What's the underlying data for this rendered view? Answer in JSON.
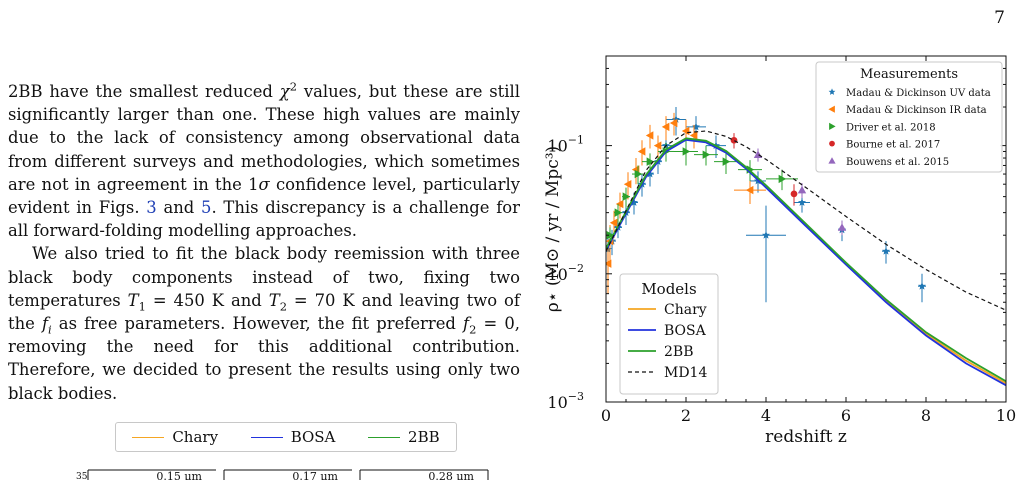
{
  "page_number": "7",
  "paragraphs": [
    {
      "segments": [
        {
          "t": "2BB have the smallest reduced "
        },
        {
          "t": "χ",
          "i": true
        },
        {
          "t": "2",
          "sup": true
        },
        {
          "t": " values, but these are still significantly larger than one. These high values are mainly due to the lack of consistency among observational data from different surveys and methodologies, which sometimes are not in agreement in the 1"
        },
        {
          "t": "σ",
          "i": true
        },
        {
          "t": " confidence level, particularly evident in Figs. "
        },
        {
          "t": "3",
          "link": true
        },
        {
          "t": " and "
        },
        {
          "t": "5",
          "link": true
        },
        {
          "t": ". This discrepancy is a challenge for all forward-folding modelling approaches."
        }
      ]
    },
    {
      "indent": true,
      "segments": [
        {
          "t": "We also tried to fit the black body reemission with three black body components instead of two, fixing two temperatures "
        },
        {
          "t": "T",
          "i": true
        },
        {
          "t": "1",
          "sub": true
        },
        {
          "t": " = 450 K and "
        },
        {
          "t": "T",
          "i": true
        },
        {
          "t": "2",
          "sub": true
        },
        {
          "t": " = 70 K and leaving two of the "
        },
        {
          "t": "f",
          "i": true
        },
        {
          "t": "i",
          "sub": true,
          "i": true
        },
        {
          "t": " as free parameters. However, the fit preferred "
        },
        {
          "t": "f",
          "i": true
        },
        {
          "t": "2",
          "sub": true
        },
        {
          "t": " = 0, removing the need for this additional contribution. Therefore, we decided to present the results using only two black bodies."
        }
      ]
    }
  ],
  "sub_figure": {
    "legend": [
      {
        "label": "Chary",
        "color": "#f5a623"
      },
      {
        "label": "BOSA",
        "color": "#2233dd"
      },
      {
        "label": "2BB",
        "color": "#2ca02c"
      }
    ],
    "panel_labels": [
      "0.15 µm",
      "0.17 µm",
      "0.28 µm"
    ],
    "y_tick": "35"
  },
  "chart_data": {
    "type": "scatter",
    "xlabel": "redshift z",
    "ylabel": "ρ⋆ (M⊙ / yr / Mpc³)",
    "xlim": [
      0,
      10
    ],
    "ylim": [
      0.001,
      0.5
    ],
    "y_scale": "log",
    "x_ticks": [
      0,
      2,
      4,
      6,
      8,
      10
    ],
    "y_ticks": [
      {
        "value": 0.001,
        "label": "10",
        "exp": "−3"
      },
      {
        "value": 0.01,
        "label": "10",
        "exp": "−2"
      },
      {
        "value": 0.1,
        "label": "10",
        "exp": "−1"
      }
    ],
    "measurements_legend": {
      "title": "Measurements",
      "placement": "top-right"
    },
    "models_legend": {
      "title": "Models",
      "placement": "bottom-left"
    },
    "measurements": [
      {
        "name": "Madau & Dickinson UV data",
        "marker": "star",
        "color": "#1f77b4",
        "points": [
          {
            "x": 0.05,
            "y": 0.0155,
            "yerr": 0.004,
            "xerr": 0.05
          },
          {
            "x": 0.15,
            "y": 0.018,
            "yerr": 0.004,
            "xerr": 0.1
          },
          {
            "x": 0.3,
            "y": 0.023,
            "yerr": 0.004,
            "xerr": 0.1
          },
          {
            "x": 0.5,
            "y": 0.03,
            "yerr": 0.006,
            "xerr": 0.1
          },
          {
            "x": 0.7,
            "y": 0.036,
            "yerr": 0.007,
            "xerr": 0.1
          },
          {
            "x": 0.9,
            "y": 0.05,
            "yerr": 0.01,
            "xerr": 0.1
          },
          {
            "x": 1.1,
            "y": 0.06,
            "yerr": 0.012,
            "xerr": 0.1
          },
          {
            "x": 1.3,
            "y": 0.075,
            "yerr": 0.015,
            "xerr": 0.1
          },
          {
            "x": 1.5,
            "y": 0.1,
            "yerr": 0.02,
            "xerr": 0.2
          },
          {
            "x": 1.75,
            "y": 0.16,
            "yerr": 0.04,
            "xerr": 0.25
          },
          {
            "x": 2.25,
            "y": 0.14,
            "yerr": 0.03,
            "xerr": 0.25
          },
          {
            "x": 2.75,
            "y": 0.1,
            "yerr": 0.02,
            "xerr": 0.25
          },
          {
            "x": 3.8,
            "y": 0.053,
            "yerr": 0.01,
            "xerr": 0.2
          },
          {
            "x": 4.9,
            "y": 0.036,
            "yerr": 0.006,
            "xerr": 0.2
          },
          {
            "x": 4.0,
            "y": 0.02,
            "yerr": 0.014,
            "xerr": 0.5
          },
          {
            "x": 5.9,
            "y": 0.022,
            "yerr": 0.004,
            "xerr": 0.1
          },
          {
            "x": 7.0,
            "y": 0.015,
            "yerr": 0.003,
            "xerr": 0.1
          },
          {
            "x": 7.9,
            "y": 0.008,
            "yerr": 0.002,
            "xerr": 0.1
          }
        ]
      },
      {
        "name": "Madau & Dickinson IR data",
        "marker": "triangle-left",
        "color": "#ff7f0e",
        "points": [
          {
            "x": 0.05,
            "y": 0.012,
            "yerr": 0.005
          },
          {
            "x": 0.1,
            "y": 0.018,
            "yerr": 0.006
          },
          {
            "x": 0.2,
            "y": 0.025,
            "yerr": 0.006
          },
          {
            "x": 0.35,
            "y": 0.035,
            "yerr": 0.008
          },
          {
            "x": 0.55,
            "y": 0.05,
            "yerr": 0.012
          },
          {
            "x": 0.75,
            "y": 0.065,
            "yerr": 0.015
          },
          {
            "x": 0.9,
            "y": 0.09,
            "yerr": 0.02
          },
          {
            "x": 1.1,
            "y": 0.12,
            "yerr": 0.025
          },
          {
            "x": 1.3,
            "y": 0.1,
            "yerr": 0.02
          },
          {
            "x": 1.5,
            "y": 0.14,
            "yerr": 0.03
          },
          {
            "x": 1.7,
            "y": 0.15,
            "yerr": 0.03
          },
          {
            "x": 2.0,
            "y": 0.13,
            "yerr": 0.03
          },
          {
            "x": 2.2,
            "y": 0.12,
            "yerr": 0.025
          },
          {
            "x": 3.6,
            "y": 0.045,
            "yerr": 0.01,
            "xerr": 0.4
          }
        ]
      },
      {
        "name": "Driver et al. 2018",
        "marker": "triangle-right",
        "color": "#2ca02c",
        "points": [
          {
            "x": 0.1,
            "y": 0.02,
            "yerr": 0.003,
            "xerr": 0.05
          },
          {
            "x": 0.3,
            "y": 0.03,
            "yerr": 0.005,
            "xerr": 0.1
          },
          {
            "x": 0.5,
            "y": 0.04,
            "yerr": 0.007,
            "xerr": 0.1
          },
          {
            "x": 0.8,
            "y": 0.06,
            "yerr": 0.01,
            "xerr": 0.15
          },
          {
            "x": 1.1,
            "y": 0.075,
            "yerr": 0.012,
            "xerr": 0.2
          },
          {
            "x": 1.5,
            "y": 0.09,
            "yerr": 0.015,
            "xerr": 0.2
          },
          {
            "x": 2.0,
            "y": 0.09,
            "yerr": 0.02,
            "xerr": 0.3
          },
          {
            "x": 2.5,
            "y": 0.085,
            "yerr": 0.015,
            "xerr": 0.3
          },
          {
            "x": 3.0,
            "y": 0.075,
            "yerr": 0.015,
            "xerr": 0.3
          },
          {
            "x": 3.6,
            "y": 0.065,
            "yerr": 0.012,
            "xerr": 0.3
          },
          {
            "x": 4.4,
            "y": 0.055,
            "yerr": 0.01,
            "xerr": 0.4
          }
        ]
      },
      {
        "name": "Bourne et al. 2017",
        "marker": "circle",
        "color": "#d62728",
        "points": [
          {
            "x": 3.2,
            "y": 0.11,
            "yerr": 0.015
          },
          {
            "x": 4.7,
            "y": 0.042,
            "yerr": 0.008
          }
        ]
      },
      {
        "name": "Bouwens et al. 2015",
        "marker": "triangle-up",
        "color": "#9467bd",
        "points": [
          {
            "x": 3.8,
            "y": 0.085,
            "yerr": 0.01
          },
          {
            "x": 4.9,
            "y": 0.045,
            "yerr": 0.006
          },
          {
            "x": 5.9,
            "y": 0.023,
            "yerr": 0.003
          }
        ]
      }
    ],
    "models": [
      {
        "name": "Chary",
        "color": "#f5a623",
        "style": "solid",
        "points": [
          [
            0,
            0.0155
          ],
          [
            0.5,
            0.03
          ],
          [
            1,
            0.058
          ],
          [
            1.5,
            0.092
          ],
          [
            2,
            0.113
          ],
          [
            2.5,
            0.108
          ],
          [
            3,
            0.09
          ],
          [
            3.5,
            0.067
          ],
          [
            4,
            0.048
          ],
          [
            5,
            0.024
          ],
          [
            6,
            0.012
          ],
          [
            7,
            0.0062
          ],
          [
            8,
            0.0034
          ],
          [
            9,
            0.0021
          ],
          [
            10,
            0.0014
          ]
        ]
      },
      {
        "name": "BOSA",
        "color": "#2233dd",
        "style": "solid",
        "points": [
          [
            0,
            0.0152
          ],
          [
            0.5,
            0.0295
          ],
          [
            1,
            0.057
          ],
          [
            1.5,
            0.09
          ],
          [
            2,
            0.111
          ],
          [
            2.5,
            0.106
          ],
          [
            3,
            0.088
          ],
          [
            3.5,
            0.066
          ],
          [
            4,
            0.047
          ],
          [
            5,
            0.0235
          ],
          [
            6,
            0.0118
          ],
          [
            7,
            0.006
          ],
          [
            8,
            0.0033
          ],
          [
            9,
            0.002
          ],
          [
            10,
            0.00135
          ]
        ]
      },
      {
        "name": "2BB",
        "color": "#2ca02c",
        "style": "solid",
        "points": [
          [
            0,
            0.0158
          ],
          [
            0.5,
            0.0305
          ],
          [
            1,
            0.059
          ],
          [
            1.5,
            0.093
          ],
          [
            2,
            0.114
          ],
          [
            2.5,
            0.109
          ],
          [
            3,
            0.091
          ],
          [
            3.5,
            0.068
          ],
          [
            4,
            0.049
          ],
          [
            5,
            0.0245
          ],
          [
            6,
            0.0122
          ],
          [
            7,
            0.0063
          ],
          [
            8,
            0.0035
          ],
          [
            9,
            0.0022
          ],
          [
            10,
            0.00145
          ]
        ]
      },
      {
        "name": "MD14",
        "color": "#111111",
        "style": "dashed",
        "points": [
          [
            0,
            0.015
          ],
          [
            0.5,
            0.031
          ],
          [
            1,
            0.064
          ],
          [
            1.5,
            0.1
          ],
          [
            2,
            0.126
          ],
          [
            2.5,
            0.13
          ],
          [
            3,
            0.118
          ],
          [
            3.5,
            0.098
          ],
          [
            4,
            0.078
          ],
          [
            5,
            0.047
          ],
          [
            6,
            0.028
          ],
          [
            7,
            0.017
          ],
          [
            8,
            0.0108
          ],
          [
            9,
            0.0072
          ],
          [
            10,
            0.0052
          ]
        ]
      }
    ]
  }
}
